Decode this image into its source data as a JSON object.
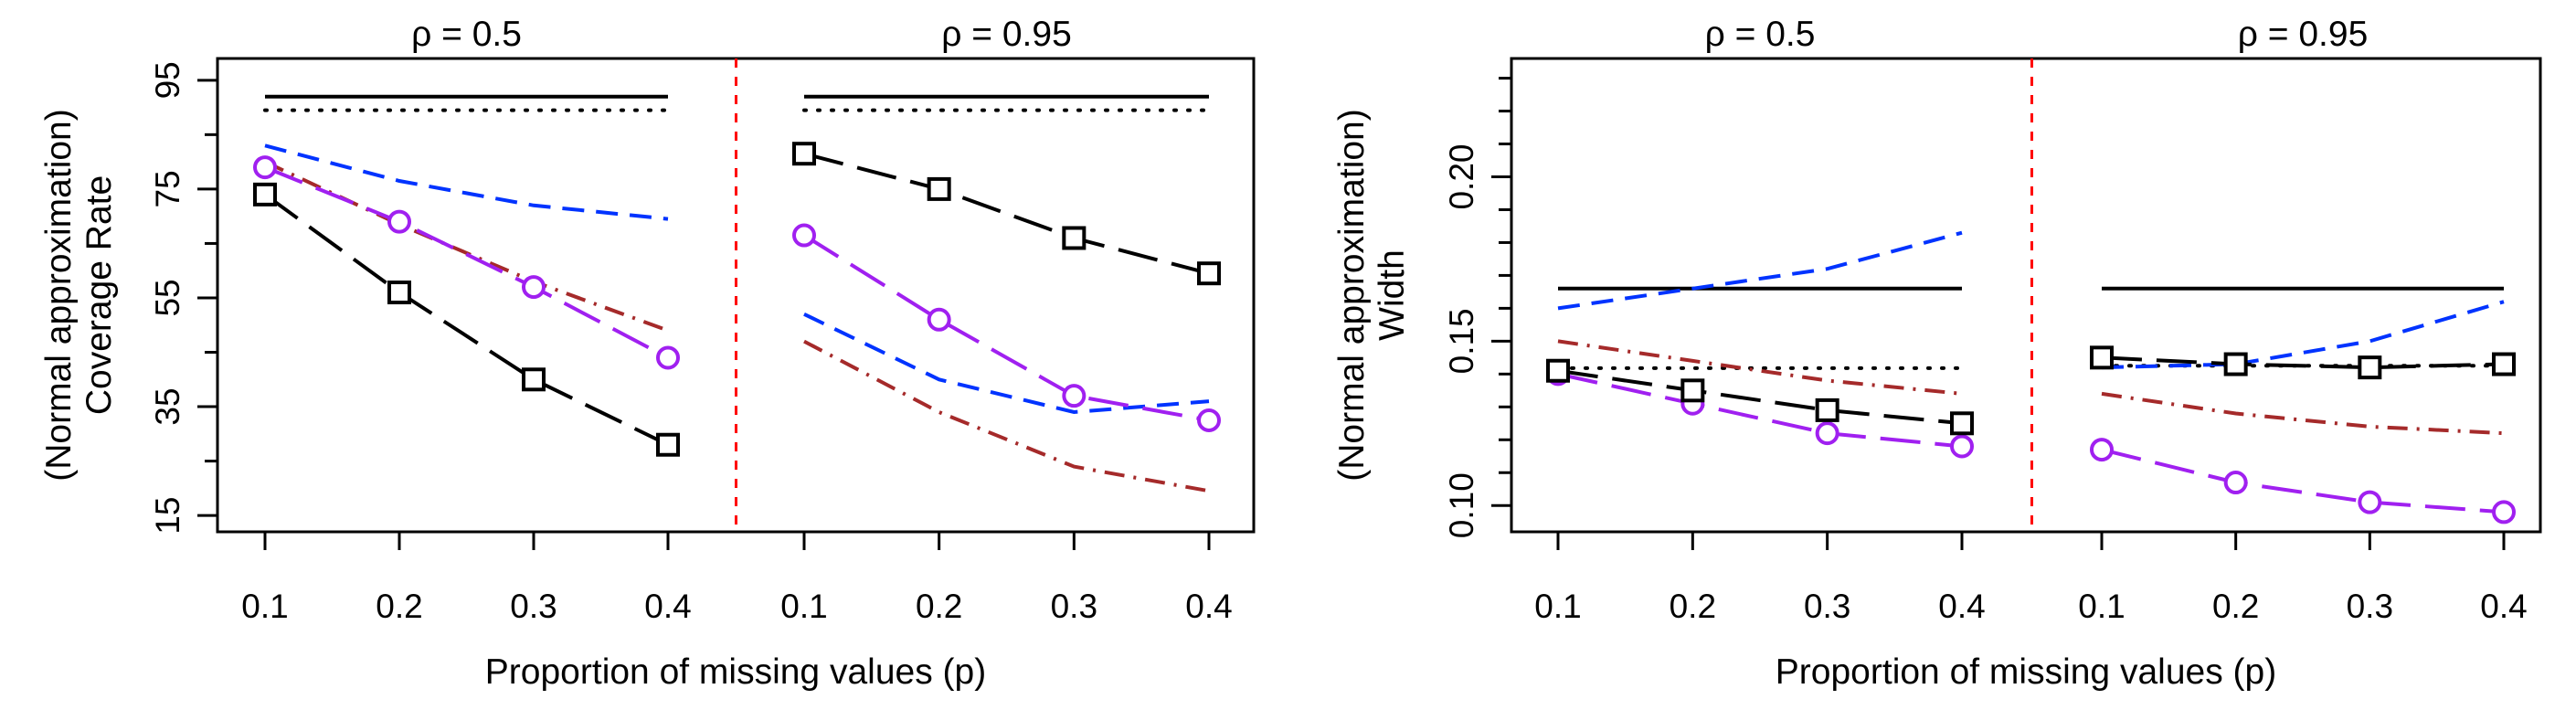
{
  "chart_data": [
    {
      "type": "line",
      "xlabel": "Proportion of missing values (p)",
      "ylabel": "(Normal approximation) Coverage Rate",
      "ylabel_lines": [
        "(Normal approximation)",
        "Coverage Rate"
      ],
      "yticks": [
        15,
        35,
        55,
        75,
        95
      ],
      "yticks_minor": [
        25,
        45,
        65,
        85
      ],
      "ytick_labels": [
        "15",
        "35",
        "55",
        "75",
        "95"
      ],
      "ylim": [
        12,
        99
      ],
      "panels": [
        {
          "title": "ρ = 0.5",
          "x": [
            0.1,
            0.2,
            0.3,
            0.4
          ],
          "xtick_labels": [
            "0.1",
            "0.2",
            "0.3",
            "0.4"
          ],
          "series": [
            {
              "name": "black-solid",
              "color": "#000000",
              "style": "solid",
              "values": [
                92,
                92,
                92,
                92
              ]
            },
            {
              "name": "black-dotted",
              "color": "#000000",
              "style": "dotted",
              "values": [
                89.5,
                89.5,
                89.5,
                89.5
              ]
            },
            {
              "name": "blue-dashed",
              "color": "#0033ff",
              "style": "dashed",
              "values": [
                83,
                76.5,
                72,
                69.5
              ]
            },
            {
              "name": "red-dashdot",
              "color": "#a52a2a",
              "style": "dashdot",
              "values": [
                80,
                68.5,
                58,
                49
              ]
            },
            {
              "name": "purple-circles",
              "color": "#a020f0",
              "style": "longdash",
              "marker": "circle",
              "values": [
                79,
                69,
                57,
                44
              ]
            },
            {
              "name": "black-squares",
              "color": "#000000",
              "style": "longdash",
              "marker": "square",
              "values": [
                74,
                56,
                40,
                28
              ]
            }
          ]
        },
        {
          "title": "ρ = 0.95",
          "x": [
            0.1,
            0.2,
            0.3,
            0.4
          ],
          "xtick_labels": [
            "0.1",
            "0.2",
            "0.3",
            "0.4"
          ],
          "series": [
            {
              "name": "black-solid",
              "color": "#000000",
              "style": "solid",
              "values": [
                92,
                92,
                92,
                92
              ]
            },
            {
              "name": "black-dotted",
              "color": "#000000",
              "style": "dotted",
              "values": [
                89.5,
                89.5,
                89.5,
                89.5
              ]
            },
            {
              "name": "blue-dashed",
              "color": "#0033ff",
              "style": "dashed",
              "values": [
                52,
                40,
                34,
                36
              ]
            },
            {
              "name": "red-dashdot",
              "color": "#a52a2a",
              "style": "dashdot",
              "values": [
                47,
                34,
                24,
                19.5
              ]
            },
            {
              "name": "purple-circles",
              "color": "#a020f0",
              "style": "longdash",
              "marker": "circle",
              "values": [
                66.5,
                51,
                37,
                32.5
              ]
            },
            {
              "name": "black-squares",
              "color": "#000000",
              "style": "longdash",
              "marker": "square",
              "values": [
                81.5,
                75,
                66,
                59.5
              ]
            }
          ]
        }
      ]
    },
    {
      "type": "line",
      "xlabel": "Proportion of missing values (p)",
      "ylabel": "(Normal approximation) Width",
      "ylabel_lines": [
        "(Normal approximation)",
        "Width"
      ],
      "yticks": [
        0.1,
        0.15,
        0.2
      ],
      "yticks_minor": [
        0.11,
        0.12,
        0.13,
        0.14,
        0.16,
        0.17,
        0.18,
        0.19,
        0.21,
        0.22,
        0.23
      ],
      "ytick_labels": [
        "0.10",
        "0.15",
        "0.20"
      ],
      "ylim": [
        0.092,
        0.236
      ],
      "panels": [
        {
          "title": "ρ = 0.5",
          "x": [
            0.1,
            0.2,
            0.3,
            0.4
          ],
          "xtick_labels": [
            "0.1",
            "0.2",
            "0.3",
            "0.4"
          ],
          "series": [
            {
              "name": "black-solid",
              "color": "#000000",
              "style": "solid",
              "values": [
                0.166,
                0.166,
                0.166,
                0.166
              ]
            },
            {
              "name": "black-dotted",
              "color": "#000000",
              "style": "dotted",
              "values": [
                0.1418,
                0.1418,
                0.1418,
                0.1418
              ]
            },
            {
              "name": "blue-dashed",
              "color": "#0033ff",
              "style": "dashed",
              "values": [
                0.16,
                0.166,
                0.172,
                0.183
              ]
            },
            {
              "name": "red-dashdot",
              "color": "#a52a2a",
              "style": "dashdot",
              "values": [
                0.15,
                0.144,
                0.138,
                0.134
              ]
            },
            {
              "name": "purple-circles",
              "color": "#a020f0",
              "style": "longdash",
              "marker": "circle",
              "values": [
                0.14,
                0.131,
                0.122,
                0.118
              ]
            },
            {
              "name": "black-squares",
              "color": "#000000",
              "style": "longdash",
              "marker": "square",
              "values": [
                0.141,
                0.135,
                0.129,
                0.125
              ]
            }
          ]
        },
        {
          "title": "ρ = 0.95",
          "x": [
            0.1,
            0.2,
            0.3,
            0.4
          ],
          "xtick_labels": [
            "0.1",
            "0.2",
            "0.3",
            "0.4"
          ],
          "series": [
            {
              "name": "black-solid",
              "color": "#000000",
              "style": "solid",
              "values": [
                0.166,
                0.166,
                0.166,
                0.166
              ]
            },
            {
              "name": "black-dotted",
              "color": "#000000",
              "style": "dotted",
              "values": [
                0.1425,
                0.1425,
                0.1425,
                0.1425
              ]
            },
            {
              "name": "blue-dashed",
              "color": "#0033ff",
              "style": "dashed",
              "values": [
                0.142,
                0.143,
                0.15,
                0.162
              ]
            },
            {
              "name": "red-dashdot",
              "color": "#a52a2a",
              "style": "dashdot",
              "values": [
                0.134,
                0.128,
                0.124,
                0.122
              ]
            },
            {
              "name": "purple-circles",
              "color": "#a020f0",
              "style": "longdash",
              "marker": "circle",
              "values": [
                0.117,
                0.107,
                0.101,
                0.098
              ]
            },
            {
              "name": "black-squares",
              "color": "#000000",
              "style": "longdash",
              "marker": "square",
              "values": [
                0.145,
                0.143,
                0.142,
                0.143
              ]
            }
          ]
        }
      ]
    }
  ]
}
